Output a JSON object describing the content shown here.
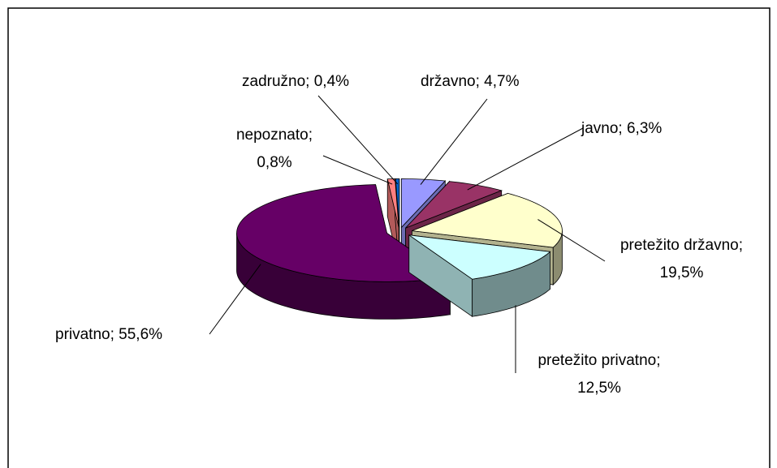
{
  "chart_data": {
    "type": "pie3d",
    "categories": [
      "državno",
      "javno",
      "pretežito državno",
      "pretežito privatno",
      "privatno",
      "nepoznato",
      "zadružno"
    ],
    "values": [
      4.7,
      6.3,
      19.5,
      12.5,
      55.6,
      0.8,
      0.4
    ],
    "value_labels": [
      "4,7%",
      "6,3%",
      "19,5%",
      "12,5%",
      "55,6%",
      "0,8%",
      "0,4%"
    ],
    "label_separator": "; ",
    "colors": [
      "#9999ff",
      "#993366",
      "#ffffcc",
      "#ccffff",
      "#660066",
      "#ff8080",
      "#0066cc"
    ],
    "exploded": true
  }
}
